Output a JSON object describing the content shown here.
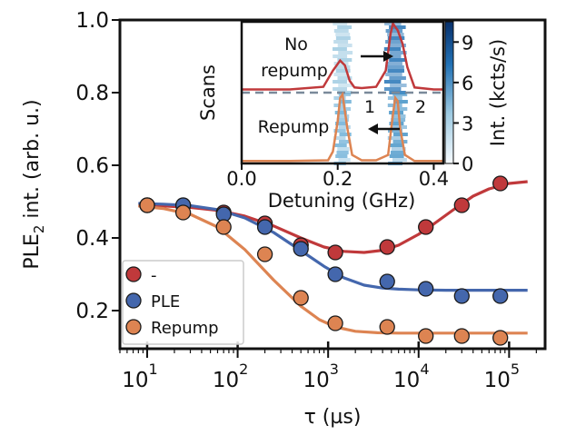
{
  "chart_data": {
    "type": "scatter",
    "xlabel": "τ (µs)",
    "ylabel": "PLE",
    "ylabel_sub": "2",
    "ylabel_rest": " int. (arb. u.)",
    "xscale": "log",
    "xlim": [
      5,
      250000
    ],
    "ylim": [
      0.095,
      1.0
    ],
    "xticks": [
      {
        "value": 10,
        "base": "10",
        "exp": "1"
      },
      {
        "value": 100,
        "base": "10",
        "exp": "2"
      },
      {
        "value": 1000,
        "base": "10",
        "exp": "3"
      },
      {
        "value": 10000,
        "base": "10",
        "exp": "4"
      },
      {
        "value": 100000,
        "base": "10",
        "exp": "5"
      }
    ],
    "yticks": [
      {
        "value": 0.2,
        "label": "0.2"
      },
      {
        "value": 0.4,
        "label": "0.4"
      },
      {
        "value": 0.6,
        "label": "0.6"
      },
      {
        "value": 0.8,
        "label": "0.8"
      },
      {
        "value": 1.0,
        "label": "1.0"
      }
    ],
    "legend_position": "bottom-left",
    "series": [
      {
        "name": "-",
        "color": "#c0393b",
        "x": [
          10,
          25,
          70,
          200,
          500,
          1200,
          4500,
          12000,
          30000,
          80000
        ],
        "y": [
          0.49,
          0.49,
          0.47,
          0.44,
          0.38,
          0.36,
          0.375,
          0.43,
          0.49,
          0.55
        ],
        "fit_x": [
          8,
          15,
          30,
          60,
          120,
          250,
          500,
          900,
          1500,
          2500,
          4000,
          6000,
          10000,
          15000,
          25000,
          40000,
          60000,
          100000,
          160000
        ],
        "fit_y": [
          0.49,
          0.488,
          0.484,
          0.476,
          0.46,
          0.433,
          0.4,
          0.375,
          0.363,
          0.36,
          0.366,
          0.38,
          0.41,
          0.44,
          0.48,
          0.515,
          0.535,
          0.55,
          0.555
        ]
      },
      {
        "name": "PLE",
        "color": "#4467ad",
        "x": [
          10,
          25,
          70,
          200,
          500,
          1200,
          4500,
          12000,
          30000,
          80000
        ],
        "y": [
          0.49,
          0.49,
          0.465,
          0.43,
          0.37,
          0.3,
          0.28,
          0.26,
          0.24,
          0.24
        ],
        "fit_x": [
          8,
          15,
          30,
          60,
          120,
          250,
          500,
          900,
          1500,
          2500,
          4000,
          6000,
          10000,
          20000,
          50000,
          160000
        ],
        "fit_y": [
          0.495,
          0.493,
          0.489,
          0.478,
          0.455,
          0.415,
          0.365,
          0.322,
          0.29,
          0.27,
          0.262,
          0.259,
          0.257,
          0.256,
          0.256,
          0.256
        ]
      },
      {
        "name": "Repump",
        "color": "#dd8452",
        "x": [
          10,
          25,
          70,
          200,
          500,
          1200,
          4500,
          12000,
          30000,
          80000
        ],
        "y": [
          0.49,
          0.47,
          0.43,
          0.355,
          0.235,
          0.165,
          0.155,
          0.13,
          0.13,
          0.125
        ],
        "fit_x": [
          8,
          15,
          30,
          60,
          120,
          250,
          500,
          800,
          1200,
          2000,
          3500,
          6000,
          15000,
          50000,
          160000
        ],
        "fit_y": [
          0.488,
          0.481,
          0.465,
          0.43,
          0.368,
          0.284,
          0.212,
          0.175,
          0.155,
          0.143,
          0.139,
          0.138,
          0.138,
          0.138,
          0.138
        ]
      }
    ],
    "inset": {
      "xlabel": "Detuning (GHz)",
      "ylabel": "Scans",
      "xlim": [
        0.0,
        0.42
      ],
      "xticks": [
        {
          "value": 0.0,
          "label": "0.0"
        },
        {
          "value": 0.2,
          "label": "0.2"
        },
        {
          "value": 0.4,
          "label": "0.4"
        }
      ],
      "annotations": {
        "top_label_line1": "No",
        "top_label_line2": "repump",
        "bottom_label": "Repump",
        "peak1": "1",
        "peak2": "2"
      },
      "colorbar": {
        "label": "Int. (kcts/s)",
        "ticks": [
          {
            "value": 0,
            "label": "0"
          },
          {
            "value": 3,
            "label": "3"
          },
          {
            "value": 6,
            "label": "6"
          },
          {
            "value": 9,
            "label": "9"
          }
        ],
        "max": 10.5
      },
      "trace_top_color": "#c0393b",
      "trace_bottom_color": "#dd8452",
      "trace_top": {
        "x": [
          0.0,
          0.1,
          0.17,
          0.19,
          0.205,
          0.215,
          0.225,
          0.235,
          0.25,
          0.28,
          0.3,
          0.31,
          0.315,
          0.325,
          0.335,
          0.345,
          0.36,
          0.4,
          0.42
        ],
        "y": [
          0.02,
          0.02,
          0.06,
          0.3,
          0.45,
          0.38,
          0.15,
          0.05,
          0.04,
          0.06,
          0.3,
          0.85,
          1.0,
          0.9,
          0.7,
          0.35,
          0.05,
          0.02,
          0.02
        ]
      },
      "trace_bottom": {
        "x": [
          0.0,
          0.1,
          0.18,
          0.19,
          0.2,
          0.205,
          0.21,
          0.22,
          0.23,
          0.25,
          0.28,
          0.305,
          0.315,
          0.32,
          0.325,
          0.33,
          0.34,
          0.36,
          0.42
        ],
        "y": [
          0.01,
          0.01,
          0.02,
          0.15,
          0.6,
          0.95,
          1.0,
          0.5,
          0.1,
          0.02,
          0.02,
          0.1,
          0.7,
          0.95,
          0.9,
          0.5,
          0.1,
          0.01,
          0.01
        ]
      }
    }
  }
}
